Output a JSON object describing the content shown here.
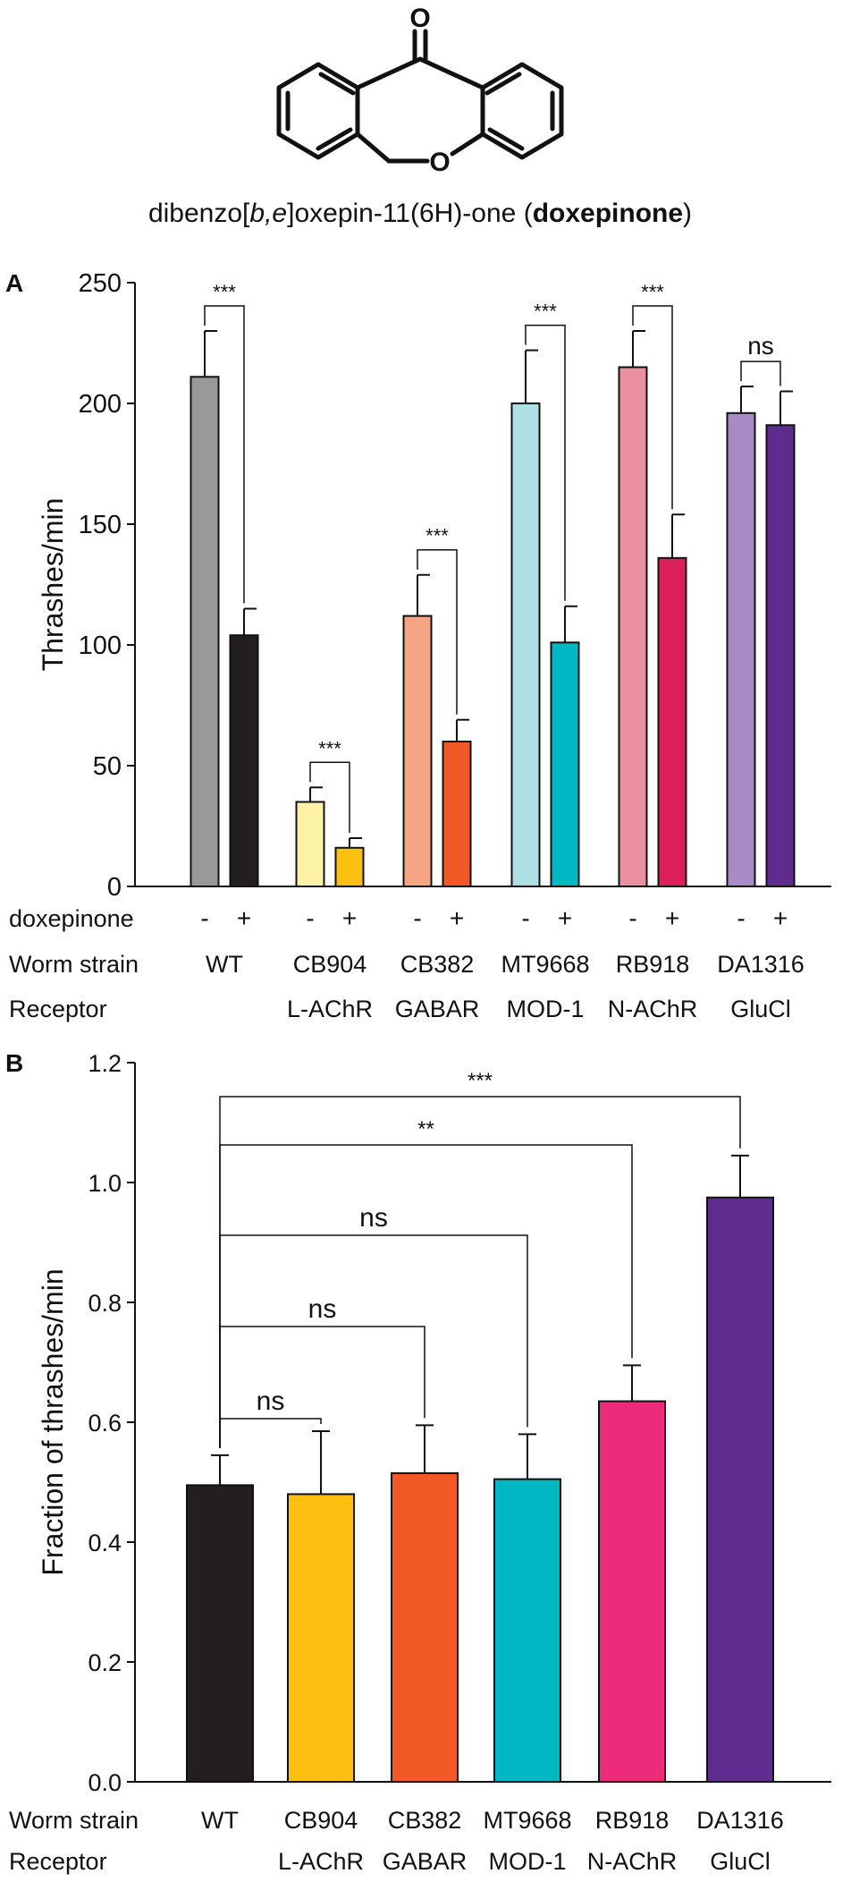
{
  "molecule": {
    "atom_o_top": "O",
    "atom_o_ring": "O",
    "caption_prefix": "dibenzo[",
    "caption_italic": "b,e",
    "caption_middle": "]oxepin-11(6H)-one (",
    "caption_bold": "doxepinone",
    "caption_suffix": ")"
  },
  "colors": {
    "axis": "#111111"
  },
  "chart_data": [
    {
      "panel_label": "A",
      "type": "bar",
      "ylabel": "Thrashes/min",
      "ylim": [
        0,
        250
      ],
      "yticks": [
        0,
        50,
        100,
        150,
        200,
        250
      ],
      "row_labels": {
        "treatment": "doxepinone",
        "strain": "Worm strain",
        "receptor": "Receptor"
      },
      "groups": [
        {
          "strain": "WT",
          "receptor": "",
          "bars": [
            {
              "treatment": "-",
              "value": 211,
              "error": 19,
              "color": "#98999b"
            },
            {
              "treatment": "+",
              "value": 104,
              "error": 11,
              "color": "#231f20"
            }
          ],
          "significance": "***"
        },
        {
          "strain": "CB904",
          "receptor": "L-AChR",
          "bars": [
            {
              "treatment": "-",
              "value": 35,
              "error": 6,
              "color": "#fbf2a6"
            },
            {
              "treatment": "+",
              "value": 16,
              "error": 4,
              "color": "#fdc010"
            }
          ],
          "significance": "***"
        },
        {
          "strain": "CB382",
          "receptor": "GABAR",
          "bars": [
            {
              "treatment": "-",
              "value": 112,
              "error": 17,
              "color": "#f6a584"
            },
            {
              "treatment": "+",
              "value": 60,
              "error": 9,
              "color": "#f15a24"
            }
          ],
          "significance": "***"
        },
        {
          "strain": "MT9668",
          "receptor": "MOD-1",
          "bars": [
            {
              "treatment": "-",
              "value": 200,
              "error": 22,
              "color": "#addfe5"
            },
            {
              "treatment": "+",
              "value": 101,
              "error": 15,
              "color": "#00b7c4"
            }
          ],
          "significance": "***"
        },
        {
          "strain": "RB918",
          "receptor": "N-AChR",
          "bars": [
            {
              "treatment": "-",
              "value": 215,
              "error": 15,
              "color": "#e98fa0"
            },
            {
              "treatment": "+",
              "value": 136,
              "error": 18,
              "color": "#db1f5b"
            }
          ],
          "significance": "***"
        },
        {
          "strain": "DA1316",
          "receptor": "GluCl",
          "bars": [
            {
              "treatment": "-",
              "value": 196,
              "error": 11,
              "color": "#a78bc4"
            },
            {
              "treatment": "+",
              "value": 191,
              "error": 14,
              "color": "#5e2c8f"
            }
          ],
          "significance": "ns"
        }
      ]
    },
    {
      "panel_label": "B",
      "type": "bar",
      "ylabel": "Fraction of thrashes/min",
      "ylim": [
        0,
        1.2
      ],
      "yticks": [
        "0.0",
        "0.2",
        "0.4",
        "0.6",
        "0.8",
        "1.0",
        "1.2"
      ],
      "row_labels": {
        "strain": "Worm strain",
        "receptor": "Receptor"
      },
      "bars": [
        {
          "strain": "WT",
          "receptor": "",
          "value": 0.495,
          "error": 0.05,
          "color": "#231f20"
        },
        {
          "strain": "CB904",
          "receptor": "L-AChR",
          "value": 0.48,
          "error": 0.105,
          "color": "#fdc010"
        },
        {
          "strain": "CB382",
          "receptor": "GABAR",
          "value": 0.515,
          "error": 0.08,
          "color": "#f15a24"
        },
        {
          "strain": "MT9668",
          "receptor": "MOD-1",
          "value": 0.505,
          "error": 0.075,
          "color": "#00b7c4"
        },
        {
          "strain": "RB918",
          "receptor": "N-AChR",
          "value": 0.635,
          "error": 0.06,
          "color": "#ee2a7b"
        },
        {
          "strain": "DA1316",
          "receptor": "GluCl",
          "value": 0.975,
          "error": 0.07,
          "color": "#5e2c8f"
        }
      ],
      "comparisons": [
        {
          "from": 0,
          "to": 1,
          "label": "ns"
        },
        {
          "from": 0,
          "to": 2,
          "label": "ns"
        },
        {
          "from": 0,
          "to": 3,
          "label": "ns"
        },
        {
          "from": 0,
          "to": 4,
          "label": "**"
        },
        {
          "from": 0,
          "to": 5,
          "label": "***"
        }
      ]
    }
  ]
}
